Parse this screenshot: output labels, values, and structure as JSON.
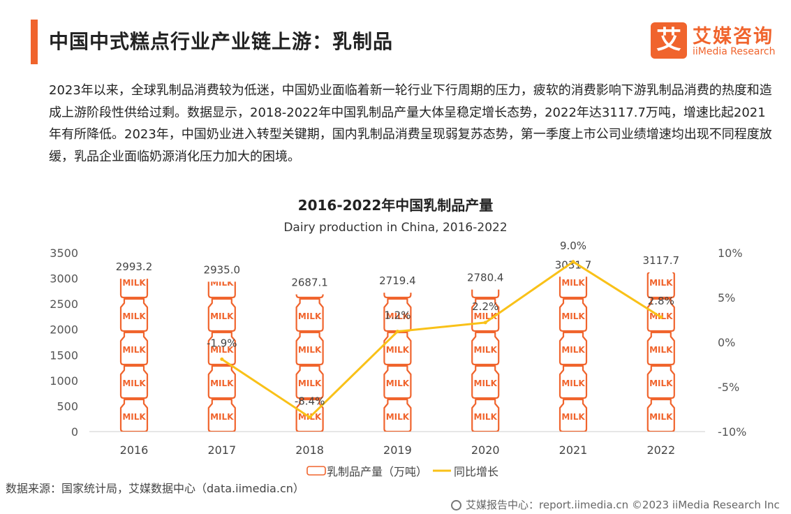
{
  "header": {
    "title": "中国中式糕点行业产业链上游：乳制品",
    "logo_mark": "艾",
    "logo_cn": "艾媒咨询",
    "logo_en": "iiMedia Research"
  },
  "description": "2023年以来，全球乳制品消费较为低迷，中国奶业面临着新一轮行业下行周期的压力，疲软的消费影响下游乳制品消费的热度和造成上游阶段性供给过剩。数据显示，2018-2022年中国乳制品产量大体呈稳定增长态势，2022年达3117.7万吨，增速比起2021年有所降低。2023年，中国奶业进入转型关键期，国内乳制品消费呈现弱复苏态势，第一季度上市公司业绩增速均出现不同程度放缓，乳品企业面临奶源消化压力加大的困境。",
  "chart_data": {
    "type": "bar",
    "title": "2016-2022年中国乳制品产量",
    "subtitle": "Dairy production in China, 2016-2022",
    "categories": [
      "2016",
      "2017",
      "2018",
      "2019",
      "2020",
      "2021",
      "2022"
    ],
    "series": [
      {
        "name": "乳制品产量（万吨）",
        "type": "bar",
        "axis": "left",
        "values": [
          2993.2,
          2935.0,
          2687.1,
          2719.4,
          2780.4,
          3031.7,
          3117.7
        ],
        "labels": [
          "2993.2",
          "2935.0",
          "2687.1",
          "2719.4",
          "2780.4",
          "3031.7",
          "3117.7"
        ]
      },
      {
        "name": "同比增长",
        "type": "line",
        "axis": "right",
        "values": [
          null,
          -1.9,
          -8.4,
          1.2,
          2.2,
          9.0,
          2.8
        ],
        "labels": [
          "",
          "-1.9%",
          "-8.4%",
          "1.2%",
          "2.2%",
          "9.0%",
          "2.8%"
        ]
      }
    ],
    "y_left": {
      "min": 0,
      "max": 3500,
      "ticks": [
        "0",
        "500",
        "1000",
        "1500",
        "2000",
        "2500",
        "3000",
        "3500"
      ]
    },
    "y_right": {
      "min": -10,
      "max": 10,
      "ticks": [
        "-10%",
        "-5%",
        "0%",
        "5%",
        "10%"
      ]
    },
    "bar_pictogram_text": "MILK",
    "legend_position": "bottom-center",
    "grid": false,
    "colors": {
      "bar": "#F0642D",
      "line": "#F9C118",
      "axis": "#cccccc"
    }
  },
  "source": "数据来源：国家统计局，艾媒数据中心（data.iimedia.cn）",
  "footer": "艾媒报告中心：report.iimedia.cn  ©2023  iiMedia Research  Inc"
}
